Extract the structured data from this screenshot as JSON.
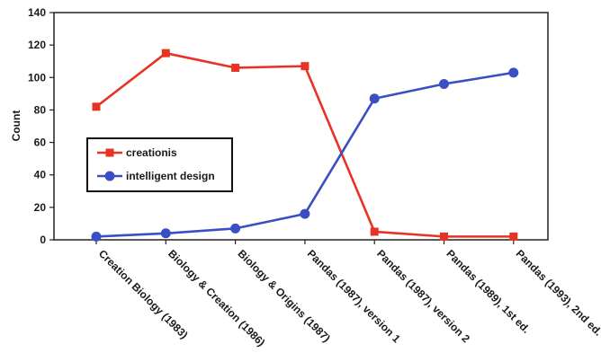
{
  "chart_data": {
    "type": "line",
    "categories": [
      "Creation Biology (1983)",
      "Biology & Creation (1986)",
      "Biology & Origins (1987)",
      "Pandas (1987), version 1",
      "Pandas (1987), version 2",
      "Pandas (1989), 1st ed.",
      "Pandas (1993), 2nd ed."
    ],
    "series": [
      {
        "name": "creationis",
        "values": [
          82,
          115,
          106,
          107,
          5,
          2,
          2
        ],
        "color": "#e63323",
        "marker": "square"
      },
      {
        "name": "intelligent design",
        "values": [
          2,
          4,
          7,
          16,
          87,
          96,
          103
        ],
        "color": "#3b4fc4",
        "marker": "circle"
      }
    ],
    "title": "",
    "xlabel": "",
    "ylabel": "Count",
    "ylim": [
      0,
      140
    ],
    "yticks": [
      0,
      20,
      40,
      60,
      80,
      100,
      120,
      140
    ],
    "grid": false,
    "legend_position": "left, inside plot"
  }
}
